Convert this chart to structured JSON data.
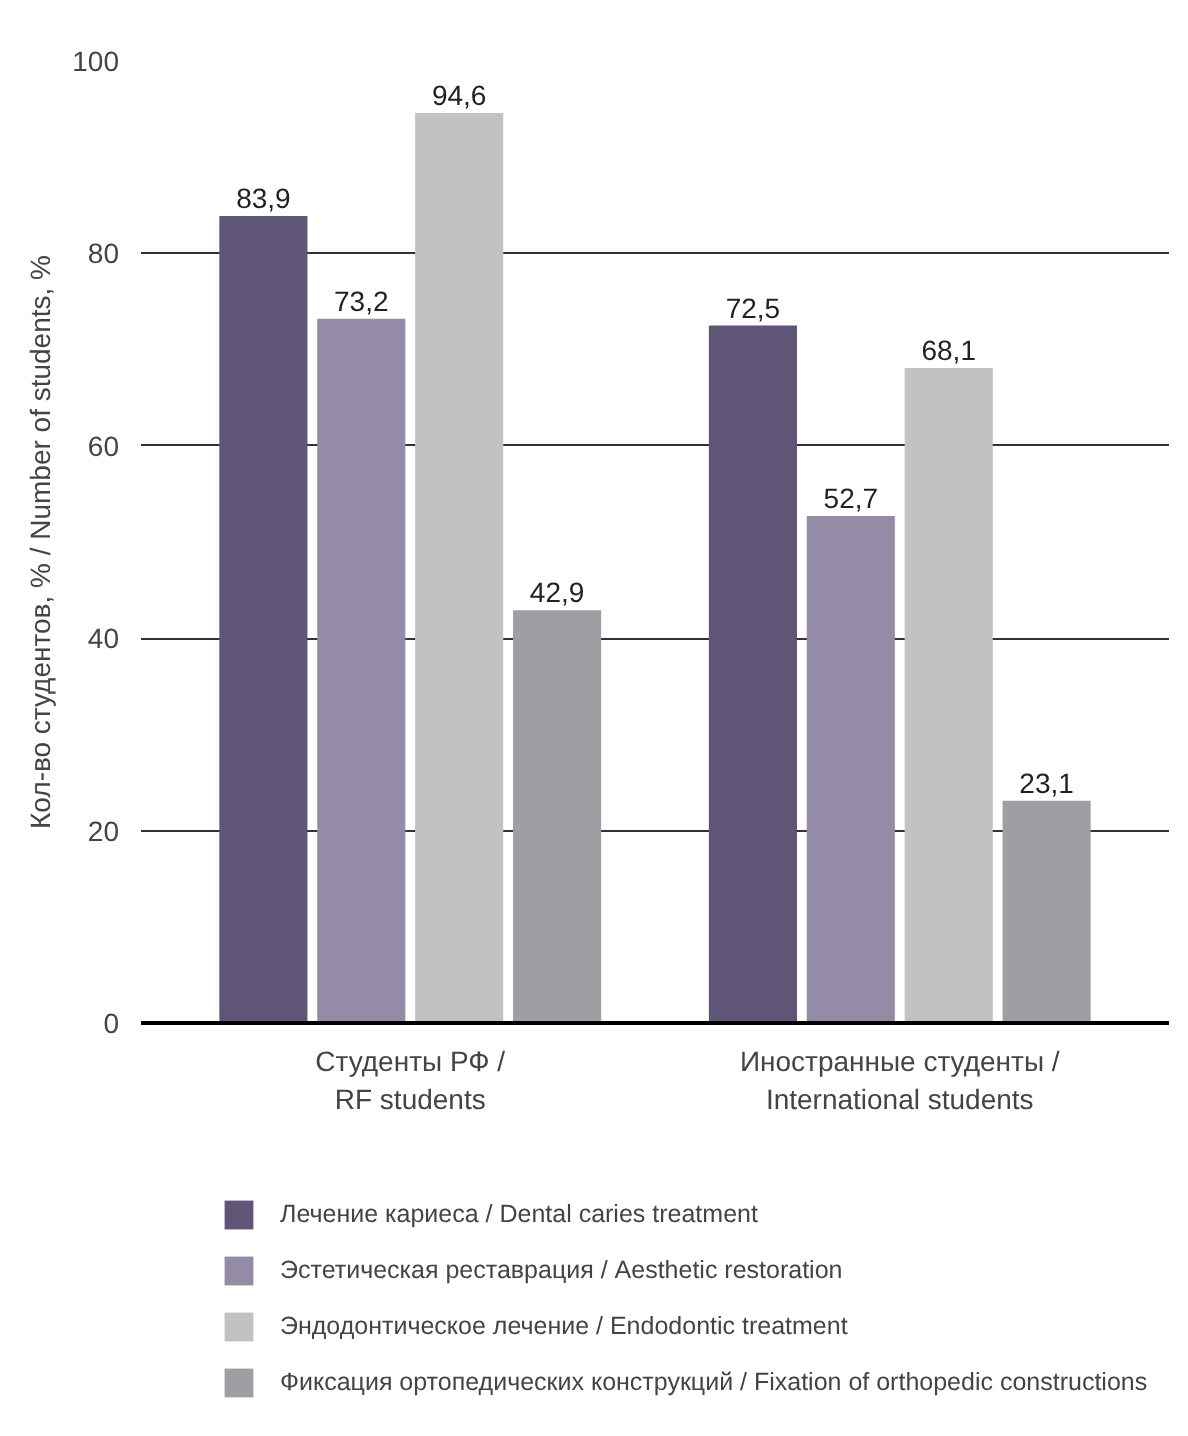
{
  "chart_data": {
    "type": "bar",
    "ylabel": "Кол-во студентов, % / Number of students, %",
    "categories": [
      "Студенты РФ /\nRF students",
      "Иностранные студенты /\nInternational students"
    ],
    "series": [
      {
        "name": "Лечение кариеса / Dental caries treatment",
        "color": "#5f5577",
        "values": [
          83.9,
          72.5
        ]
      },
      {
        "name": "Эстетическая реставрация / Aesthetic restoration",
        "color": "#948ca6",
        "values": [
          73.2,
          52.7
        ]
      },
      {
        "name": "Эндодонтическое лечение / Endodontic treatment",
        "color": "#c1c2c4",
        "values": [
          94.6,
          68.1
        ]
      },
      {
        "name": "Фиксация ортопедических конструкций / Fixation of orthopedic constructions",
        "color": "#9e9fa2",
        "values": [
          42.9,
          23.1
        ]
      }
    ],
    "value_labels": [
      [
        "83,9",
        "72,5"
      ],
      [
        "73,2",
        "52,7"
      ],
      [
        "94,6",
        "68,1"
      ],
      [
        "42,9",
        "23,1"
      ]
    ],
    "ylim": [
      0,
      100
    ],
    "yticks": [
      0,
      20,
      40,
      60,
      80,
      100
    ],
    "grid": "y",
    "legend": "bottom"
  }
}
